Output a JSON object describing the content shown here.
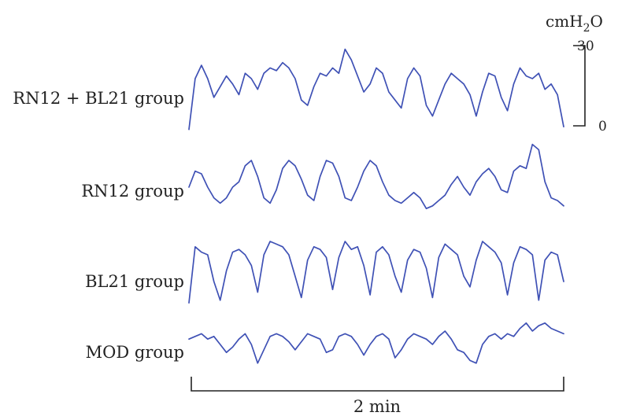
{
  "chart_data": {
    "type": "line",
    "title": "",
    "xlabel": "2 min",
    "ylabel": "cmH2O",
    "scale_bar": {
      "unit_main": "cmH",
      "unit_sub": "2",
      "unit_tail": "O",
      "top_label": "30",
      "bottom_label": "0",
      "ylim": [
        0,
        30
      ]
    },
    "time_bar": {
      "label": "2 min",
      "duration_s": 120
    },
    "trace_color": "#3f51b5",
    "series": [
      {
        "name": "RN12 + BL21 group",
        "x": [
          0,
          2,
          4,
          6,
          8,
          10,
          12,
          14,
          16,
          18,
          20,
          22,
          24,
          26,
          28,
          30,
          32,
          34,
          36,
          38,
          40,
          42,
          44,
          46,
          48,
          50,
          52,
          54,
          56,
          58,
          60,
          62,
          64,
          66,
          68,
          70,
          72,
          74,
          76,
          78,
          80,
          82,
          84,
          86,
          88,
          90,
          92,
          94,
          96,
          98,
          100,
          102,
          104,
          106,
          108,
          110,
          112,
          114,
          116,
          118,
          120
        ],
        "values": [
          1,
          20,
          25,
          20,
          13,
          17,
          21,
          18,
          14,
          22,
          20,
          16,
          22,
          24,
          23,
          26,
          24,
          20,
          12,
          10,
          17,
          22,
          21,
          24,
          22,
          31,
          27,
          21,
          15,
          18,
          24,
          22,
          15,
          12,
          9,
          20,
          24,
          21,
          10,
          6,
          12,
          18,
          22,
          20,
          18,
          14,
          6,
          15,
          22,
          21,
          13,
          8,
          18,
          24,
          21,
          20,
          22,
          16,
          18,
          14,
          2
        ]
      },
      {
        "name": "RN12 group",
        "x": [
          0,
          2,
          4,
          6,
          8,
          10,
          12,
          14,
          16,
          18,
          20,
          22,
          24,
          26,
          28,
          30,
          32,
          34,
          36,
          38,
          40,
          42,
          44,
          46,
          48,
          50,
          52,
          54,
          56,
          58,
          60,
          62,
          64,
          66,
          68,
          70,
          72,
          74,
          76,
          78,
          80,
          82,
          84,
          86,
          88,
          90,
          92,
          94,
          96,
          98,
          100,
          102,
          104,
          106,
          108,
          110,
          112,
          114,
          116,
          118,
          120
        ],
        "values": [
          10,
          16,
          15,
          10,
          6,
          4,
          6,
          10,
          12,
          18,
          20,
          14,
          6,
          4,
          9,
          17,
          20,
          18,
          13,
          7,
          5,
          14,
          20,
          19,
          14,
          6,
          5,
          10,
          16,
          20,
          18,
          12,
          7,
          5,
          4,
          6,
          8,
          6,
          2,
          3,
          5,
          7,
          11,
          14,
          10,
          7,
          12,
          15,
          17,
          14,
          9,
          8,
          16,
          18,
          17,
          26,
          24,
          12,
          6,
          5,
          3
        ]
      },
      {
        "name": "BL21 group",
        "x": [
          0,
          2,
          4,
          6,
          8,
          10,
          12,
          14,
          16,
          18,
          20,
          22,
          24,
          26,
          28,
          30,
          32,
          34,
          36,
          38,
          40,
          42,
          44,
          46,
          48,
          50,
          52,
          54,
          56,
          58,
          60,
          62,
          64,
          66,
          68,
          70,
          72,
          74,
          76,
          78,
          80,
          82,
          84,
          86,
          88,
          90,
          92,
          94,
          96,
          98,
          100,
          102,
          104,
          106,
          108,
          110,
          112,
          114,
          116,
          118,
          120
        ],
        "values": [
          2,
          23,
          21,
          20,
          10,
          3,
          14,
          21,
          22,
          20,
          16,
          6,
          20,
          25,
          24,
          23,
          20,
          12,
          4,
          18,
          23,
          22,
          19,
          7,
          19,
          25,
          22,
          23,
          16,
          5,
          21,
          23,
          20,
          12,
          6,
          18,
          22,
          21,
          15,
          4,
          19,
          24,
          22,
          20,
          12,
          8,
          18,
          25,
          23,
          21,
          17,
          5,
          17,
          23,
          22,
          20,
          3,
          18,
          21,
          20,
          10
        ]
      },
      {
        "name": "MOD group",
        "x": [
          0,
          2,
          4,
          6,
          8,
          10,
          12,
          14,
          16,
          18,
          20,
          22,
          24,
          26,
          28,
          30,
          32,
          34,
          36,
          38,
          40,
          42,
          44,
          46,
          48,
          50,
          52,
          54,
          56,
          58,
          60,
          62,
          64,
          66,
          68,
          70,
          72,
          74,
          76,
          78,
          80,
          82,
          84,
          86,
          88,
          90,
          92,
          94,
          96,
          98,
          100,
          102,
          104,
          106,
          108,
          110,
          112,
          114,
          116,
          118,
          120
        ],
        "values": [
          12,
          13,
          14,
          12,
          13,
          10,
          7,
          9,
          12,
          14,
          10,
          3,
          8,
          13,
          14,
          13,
          11,
          8,
          11,
          14,
          13,
          12,
          7,
          8,
          13,
          14,
          13,
          10,
          6,
          10,
          13,
          14,
          12,
          5,
          8,
          12,
          14,
          13,
          12,
          10,
          13,
          15,
          12,
          8,
          7,
          4,
          3,
          10,
          13,
          14,
          12,
          14,
          13,
          16,
          18,
          15,
          17,
          18,
          16,
          15,
          14
        ]
      }
    ]
  }
}
